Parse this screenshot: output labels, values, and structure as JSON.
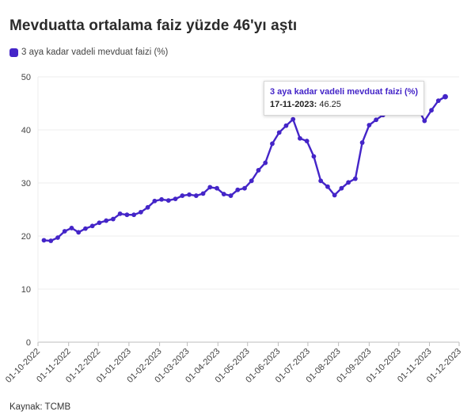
{
  "title": "Mevduatta ortalama faiz yüzde 46'yı aştı",
  "source": "Kaynak: TCMB",
  "accent_color": "#4425c8",
  "tooltip": {
    "series": "3 aya kadar vadeli mevduat faizi (%)",
    "date": "17-11-2023:",
    "value": "46.25"
  },
  "chart_data": {
    "type": "line",
    "title": "Mevduatta ortalama faiz yüzde 46'yı aştı",
    "xlabel": "",
    "ylabel": "",
    "ylim": [
      0,
      50
    ],
    "yticks": [
      0,
      10,
      20,
      30,
      40,
      50
    ],
    "xtick_labels": [
      "01-10-2022",
      "01-11-2022",
      "01-12-2022",
      "01-01-2023",
      "01-02-2023",
      "01-03-2023",
      "01-04-2023",
      "01-05-2023",
      "01-06-2023",
      "01-07-2023",
      "01-08-2023",
      "01-09-2023",
      "01-10-2023",
      "01-11-2023",
      "01-12-2023"
    ],
    "legend": "top-left",
    "grid": "horizontal",
    "series": [
      {
        "name": "3 aya kadar vadeli mevduat faizi (%)",
        "color": "#4425c8",
        "x": [
          "2022-10-07",
          "2022-10-14",
          "2022-10-21",
          "2022-10-28",
          "2022-11-04",
          "2022-11-11",
          "2022-11-18",
          "2022-11-25",
          "2022-12-02",
          "2022-12-09",
          "2022-12-16",
          "2022-12-23",
          "2022-12-30",
          "2023-01-06",
          "2023-01-13",
          "2023-01-20",
          "2023-01-27",
          "2023-02-03",
          "2023-02-10",
          "2023-02-17",
          "2023-02-24",
          "2023-03-03",
          "2023-03-10",
          "2023-03-17",
          "2023-03-24",
          "2023-03-31",
          "2023-04-07",
          "2023-04-14",
          "2023-04-21",
          "2023-04-28",
          "2023-05-05",
          "2023-05-12",
          "2023-05-19",
          "2023-05-26",
          "2023-06-02",
          "2023-06-09",
          "2023-06-16",
          "2023-06-23",
          "2023-06-30",
          "2023-07-07",
          "2023-07-14",
          "2023-07-21",
          "2023-07-28",
          "2023-08-04",
          "2023-08-11",
          "2023-08-18",
          "2023-08-25",
          "2023-09-01",
          "2023-09-08",
          "2023-09-15",
          "2023-09-22",
          "2023-09-29",
          "2023-10-06",
          "2023-10-13",
          "2023-10-20",
          "2023-10-27",
          "2023-11-03",
          "2023-11-10",
          "2023-11-17"
        ],
        "values": [
          19.2,
          19.1,
          19.7,
          20.9,
          21.5,
          20.7,
          21.4,
          21.9,
          22.5,
          22.9,
          23.2,
          24.2,
          24.0,
          24.0,
          24.5,
          25.4,
          26.6,
          26.9,
          26.7,
          27.0,
          27.6,
          27.8,
          27.6,
          28.0,
          29.2,
          29.0,
          27.9,
          27.6,
          28.7,
          29.0,
          30.4,
          32.4,
          33.8,
          37.4,
          39.5,
          40.8,
          42.0,
          38.4,
          37.9,
          35.0,
          30.4,
          29.3,
          27.7,
          29.0,
          30.1,
          30.8,
          37.6,
          40.9,
          41.9,
          42.8,
          43.6,
          44.6,
          45.4,
          45.9,
          44.2,
          41.7,
          43.7,
          45.5,
          46.25
        ]
      }
    ]
  }
}
